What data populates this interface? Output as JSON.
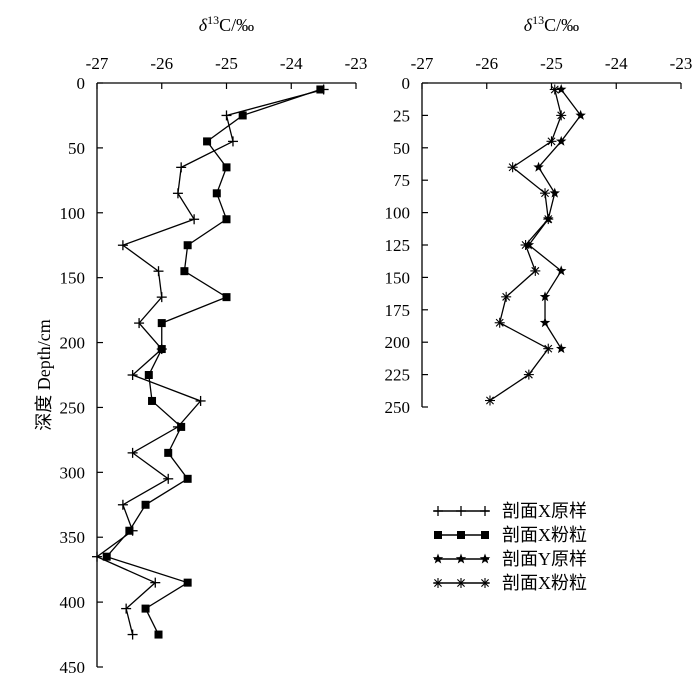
{
  "chart_data": [
    {
      "type": "line",
      "orientation": "profile",
      "xlabel": "δ13C/‰",
      "ylabel": "深度 Depth/cm",
      "x_axis_position": "top",
      "y_inverted": true,
      "xlim": [
        -27,
        -23
      ],
      "ylim": [
        0,
        450
      ],
      "xticks": [
        "-27",
        "-26",
        "-25",
        "-24",
        "-23"
      ],
      "yticks": [
        "0",
        "50",
        "100",
        "150",
        "200",
        "250",
        "300",
        "350",
        "400",
        "450"
      ],
      "grid": false,
      "series": [
        {
          "name": "剖面X原样",
          "marker": "plus",
          "points": [
            {
              "x": -23.5,
              "y": 5
            },
            {
              "x": -25.0,
              "y": 25
            },
            {
              "x": -24.9,
              "y": 45
            },
            {
              "x": -25.7,
              "y": 65
            },
            {
              "x": -25.75,
              "y": 85
            },
            {
              "x": -25.5,
              "y": 105
            },
            {
              "x": -26.6,
              "y": 125
            },
            {
              "x": -26.05,
              "y": 145
            },
            {
              "x": -26.0,
              "y": 165
            },
            {
              "x": -26.35,
              "y": 185
            },
            {
              "x": -26.0,
              "y": 205
            },
            {
              "x": -26.45,
              "y": 225
            },
            {
              "x": -25.4,
              "y": 245
            },
            {
              "x": -25.75,
              "y": 265
            },
            {
              "x": -26.45,
              "y": 285
            },
            {
              "x": -25.9,
              "y": 305
            },
            {
              "x": -26.6,
              "y": 325
            },
            {
              "x": -26.45,
              "y": 345
            },
            {
              "x": -27.0,
              "y": 365
            },
            {
              "x": -26.1,
              "y": 385
            },
            {
              "x": -26.55,
              "y": 405
            },
            {
              "x": -26.45,
              "y": 425
            }
          ]
        },
        {
          "name": "剖面X粉粒",
          "marker": "square",
          "points": [
            {
              "x": -23.55,
              "y": 5
            },
            {
              "x": -24.75,
              "y": 25
            },
            {
              "x": -25.3,
              "y": 45
            },
            {
              "x": -25.0,
              "y": 65
            },
            {
              "x": -25.15,
              "y": 85
            },
            {
              "x": -25.0,
              "y": 105
            },
            {
              "x": -25.6,
              "y": 125
            },
            {
              "x": -25.65,
              "y": 145
            },
            {
              "x": -25.0,
              "y": 165
            },
            {
              "x": -26.0,
              "y": 185
            },
            {
              "x": -26.0,
              "y": 205
            },
            {
              "x": -26.2,
              "y": 225
            },
            {
              "x": -26.15,
              "y": 245
            },
            {
              "x": -25.7,
              "y": 265
            },
            {
              "x": -25.9,
              "y": 285
            },
            {
              "x": -25.6,
              "y": 305
            },
            {
              "x": -26.25,
              "y": 325
            },
            {
              "x": -26.5,
              "y": 345
            },
            {
              "x": -26.85,
              "y": 365
            },
            {
              "x": -25.6,
              "y": 385
            },
            {
              "x": -26.25,
              "y": 405
            },
            {
              "x": -26.05,
              "y": 425
            }
          ]
        }
      ]
    },
    {
      "type": "line",
      "orientation": "profile",
      "xlabel": "δ13C/‰",
      "ylabel": "",
      "x_axis_position": "top",
      "y_inverted": true,
      "xlim": [
        -27,
        -23
      ],
      "ylim": [
        0,
        250
      ],
      "xticks": [
        "-27",
        "-26",
        "-25",
        "-24",
        "-23"
      ],
      "yticks": [
        "0",
        "25",
        "50",
        "75",
        "100",
        "125",
        "150",
        "175",
        "200",
        "225",
        "250"
      ],
      "grid": false,
      "series": [
        {
          "name": "剖面Y原样",
          "marker": "star",
          "points": [
            {
              "x": -24.85,
              "y": 5
            },
            {
              "x": -24.55,
              "y": 25
            },
            {
              "x": -24.85,
              "y": 45
            },
            {
              "x": -25.2,
              "y": 65
            },
            {
              "x": -24.95,
              "y": 85
            },
            {
              "x": -25.05,
              "y": 105
            },
            {
              "x": -25.35,
              "y": 125
            },
            {
              "x": -24.85,
              "y": 145
            },
            {
              "x": -25.1,
              "y": 165
            },
            {
              "x": -25.1,
              "y": 185
            },
            {
              "x": -24.85,
              "y": 205
            }
          ]
        },
        {
          "name": "剖面X粉粒",
          "marker": "asterisk",
          "points": [
            {
              "x": -24.95,
              "y": 5
            },
            {
              "x": -24.85,
              "y": 25
            },
            {
              "x": -25.0,
              "y": 45
            },
            {
              "x": -25.6,
              "y": 65
            },
            {
              "x": -25.1,
              "y": 85
            },
            {
              "x": -25.05,
              "y": 105
            },
            {
              "x": -25.4,
              "y": 125
            },
            {
              "x": -25.25,
              "y": 145
            },
            {
              "x": -25.7,
              "y": 165
            },
            {
              "x": -25.8,
              "y": 185
            },
            {
              "x": -25.05,
              "y": 205
            },
            {
              "x": -25.35,
              "y": 225
            },
            {
              "x": -25.95,
              "y": 245
            }
          ]
        }
      ]
    }
  ],
  "legend": {
    "placement": "bottom-right",
    "entries": [
      {
        "label": "剖面X原样",
        "marker": "plus"
      },
      {
        "label": "剖面X粉粒",
        "marker": "square"
      },
      {
        "label": "剖面Y原样",
        "marker": "star"
      },
      {
        "label": "剖面X粉粒",
        "marker": "asterisk"
      }
    ]
  }
}
